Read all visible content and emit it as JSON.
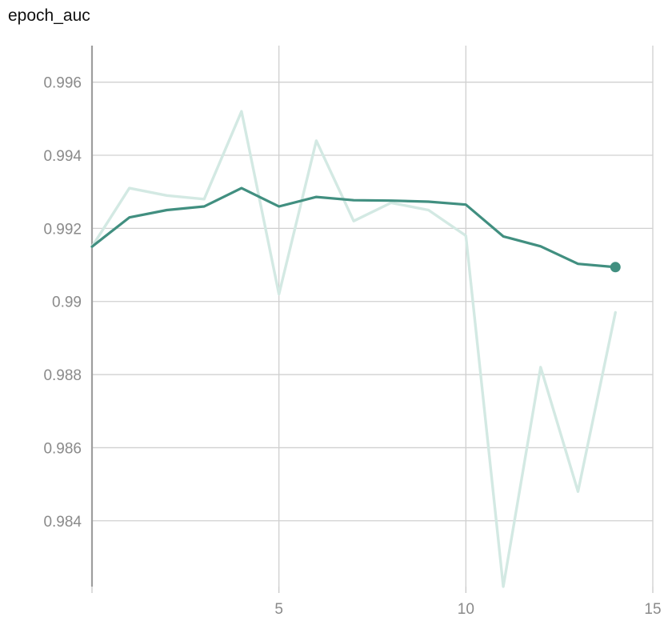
{
  "chart_data": {
    "type": "line",
    "title": "epoch_auc",
    "xlabel": "",
    "ylabel": "",
    "xlim": [
      0,
      15
    ],
    "ylim": [
      0.9822,
      0.997
    ],
    "x_ticks": [
      5,
      10,
      15
    ],
    "y_ticks": [
      0.984,
      0.986,
      0.988,
      0.99,
      0.992,
      0.994,
      0.996
    ],
    "y_tick_labels": [
      "0.984",
      "0.986",
      "0.988",
      "0.99",
      "0.992",
      "0.994",
      "0.996"
    ],
    "grid": true,
    "legend": "none",
    "series": [
      {
        "role": "raw",
        "color": "#d3e9e3",
        "x": [
          0,
          1,
          2,
          3,
          4,
          5,
          6,
          7,
          8,
          9,
          10,
          11,
          12,
          13,
          14
        ],
        "values": [
          0.9915,
          0.9931,
          0.9929,
          0.9928,
          0.9952,
          0.9902,
          0.9944,
          0.9922,
          0.9927,
          0.9925,
          0.9918,
          0.9822,
          0.9882,
          0.9848,
          0.9897
        ]
      },
      {
        "role": "smoothed",
        "color": "#418f80",
        "x": [
          0,
          1,
          2,
          3,
          4,
          5,
          6,
          7,
          8,
          9,
          10,
          11,
          12,
          13,
          14
        ],
        "values": [
          0.9915,
          0.9923,
          0.9925,
          0.9926,
          0.9931,
          0.9926,
          0.99286,
          0.99277,
          0.99276,
          0.99273,
          0.99265,
          0.99178,
          0.99151,
          0.99103,
          0.99094
        ]
      }
    ]
  }
}
